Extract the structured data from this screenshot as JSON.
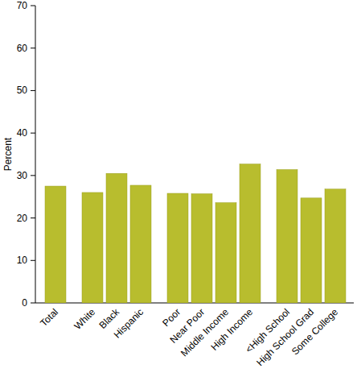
{
  "chart_data": {
    "type": "bar",
    "y_label": "Percent",
    "categories": [
      "Total",
      "White",
      "Black",
      "Hispanic",
      "Poor",
      "Near Poor",
      "Middle Income",
      "High Income",
      "<High School",
      "High School Grad",
      "Some College"
    ],
    "values": [
      27.5,
      26,
      30.5,
      27.7,
      25.8,
      25.7,
      23.6,
      32.7,
      31.4,
      24.7,
      26.8
    ],
    "color": "#b8bd2e",
    "ylim": [
      0,
      70
    ],
    "yticks": [
      0,
      10,
      20,
      30,
      40,
      50,
      60,
      70
    ],
    "grid": false
  }
}
